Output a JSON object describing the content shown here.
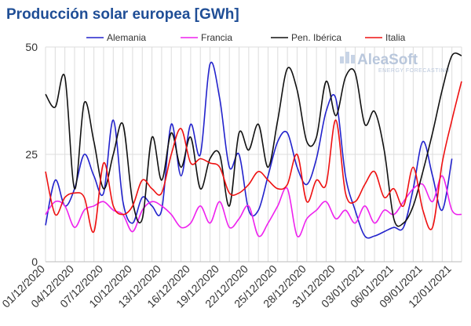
{
  "chart_data": {
    "type": "line",
    "title": "Producción solar europea [GWh]",
    "xlabel": "",
    "ylabel": "",
    "ylim": [
      0,
      50
    ],
    "yticks": [
      0,
      25,
      50
    ],
    "grid": true,
    "legend_position": "top",
    "x_tick_labels": [
      "01/12/2020",
      "04/12/2020",
      "07/12/2020",
      "10/12/2020",
      "13/12/2020",
      "16/12/2020",
      "19/12/2020",
      "22/12/2020",
      "25/12/2020",
      "28/12/2020",
      "31/12/2020",
      "03/01/2021",
      "06/01/2021",
      "09/01/2021",
      "12/01/2021"
    ],
    "x": [
      "01/12/2020",
      "02/12/2020",
      "03/12/2020",
      "04/12/2020",
      "05/12/2020",
      "06/12/2020",
      "07/12/2020",
      "08/12/2020",
      "09/12/2020",
      "10/12/2020",
      "11/12/2020",
      "12/12/2020",
      "13/12/2020",
      "14/12/2020",
      "15/12/2020",
      "16/12/2020",
      "17/12/2020",
      "18/12/2020",
      "19/12/2020",
      "20/12/2020",
      "21/12/2020",
      "22/12/2020",
      "23/12/2020",
      "24/12/2020",
      "25/12/2020",
      "26/12/2020",
      "27/12/2020",
      "28/12/2020",
      "29/12/2020",
      "30/12/2020",
      "31/12/2020",
      "01/01/2021",
      "02/01/2021",
      "03/01/2021",
      "04/01/2021",
      "05/01/2021",
      "06/01/2021",
      "07/01/2021",
      "08/01/2021",
      "09/01/2021",
      "10/01/2021",
      "11/01/2021",
      "12/01/2021",
      "13/01/2021"
    ],
    "series": [
      {
        "name": "Alemania",
        "color": "#2222cc",
        "values": [
          8.5,
          19,
          13,
          17,
          25,
          20,
          16,
          33,
          14,
          9,
          15,
          13,
          12,
          32,
          20,
          32,
          25,
          46,
          38,
          22,
          25,
          12,
          12,
          20,
          28,
          30,
          22,
          18,
          24,
          35,
          38,
          20,
          12,
          6,
          6,
          7,
          8,
          8,
          17,
          28,
          20,
          12,
          24,
          null
        ]
      },
      {
        "name": "Francia",
        "color": "#ee22ee",
        "values": [
          11,
          14,
          13,
          8,
          12,
          13,
          14,
          12,
          11,
          7,
          12,
          14,
          13,
          11,
          8,
          9,
          13,
          9,
          14,
          8,
          10,
          13,
          6,
          9,
          13,
          17,
          6,
          10,
          12,
          14,
          10,
          12,
          9,
          13,
          9,
          12,
          11,
          14,
          17,
          18,
          14,
          20,
          12,
          11
        ]
      },
      {
        "name": "Pen. Ibérica",
        "color": "#111111",
        "values": [
          39,
          36,
          43,
          17,
          37,
          28,
          17,
          25,
          32,
          14,
          10,
          29,
          19,
          30,
          22,
          29,
          17,
          24,
          25,
          13,
          30,
          26,
          32,
          22,
          33,
          45,
          40,
          28,
          29,
          42,
          34,
          43,
          44,
          32,
          35,
          26,
          10,
          9,
          13,
          21,
          30,
          40,
          48,
          48
        ]
      },
      {
        "name": "Italia",
        "color": "#ee1111",
        "values": [
          21,
          11,
          15,
          16,
          15,
          7,
          23,
          13,
          11,
          13,
          19,
          17,
          16,
          25,
          31,
          23,
          24,
          23,
          22,
          16,
          16,
          18,
          21,
          19,
          17,
          18,
          25,
          14,
          19,
          18,
          33,
          16,
          14,
          18,
          21,
          15,
          17,
          13,
          22,
          12,
          8,
          23,
          33,
          42
        ]
      }
    ]
  },
  "watermark": {
    "brand": "AleaSoft",
    "tagline": "ENERGY FORECASTING"
  }
}
